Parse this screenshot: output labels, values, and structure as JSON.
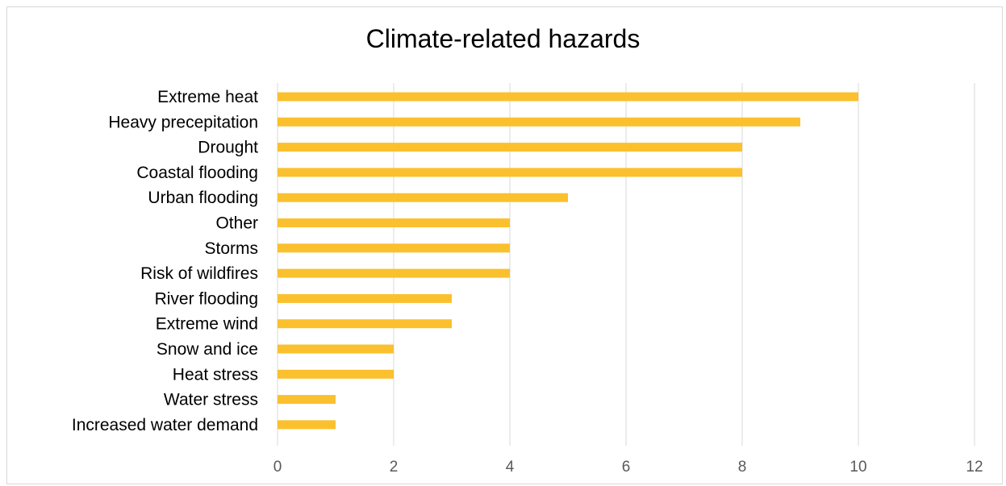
{
  "chart_data": {
    "type": "bar",
    "orientation": "horizontal",
    "title": "Climate-related hazards",
    "categories": [
      "Extreme heat",
      "Heavy precepitation",
      "Drought",
      "Coastal flooding",
      "Urban flooding",
      "Other",
      "Storms",
      "Risk of wildfires",
      "River flooding",
      "Extreme wind",
      "Snow and ice",
      "Heat stress",
      "Water stress",
      "Increased water demand"
    ],
    "values": [
      10,
      9,
      8,
      8,
      5,
      4,
      4,
      4,
      3,
      3,
      2,
      2,
      1,
      1
    ],
    "xlim": [
      0,
      12
    ],
    "xticks": [
      "0",
      "2",
      "4",
      "6",
      "8",
      "10",
      "12"
    ],
    "grid": "vertical",
    "bar_color": "#FBC02D",
    "grid_color": "#D9D9D9"
  }
}
